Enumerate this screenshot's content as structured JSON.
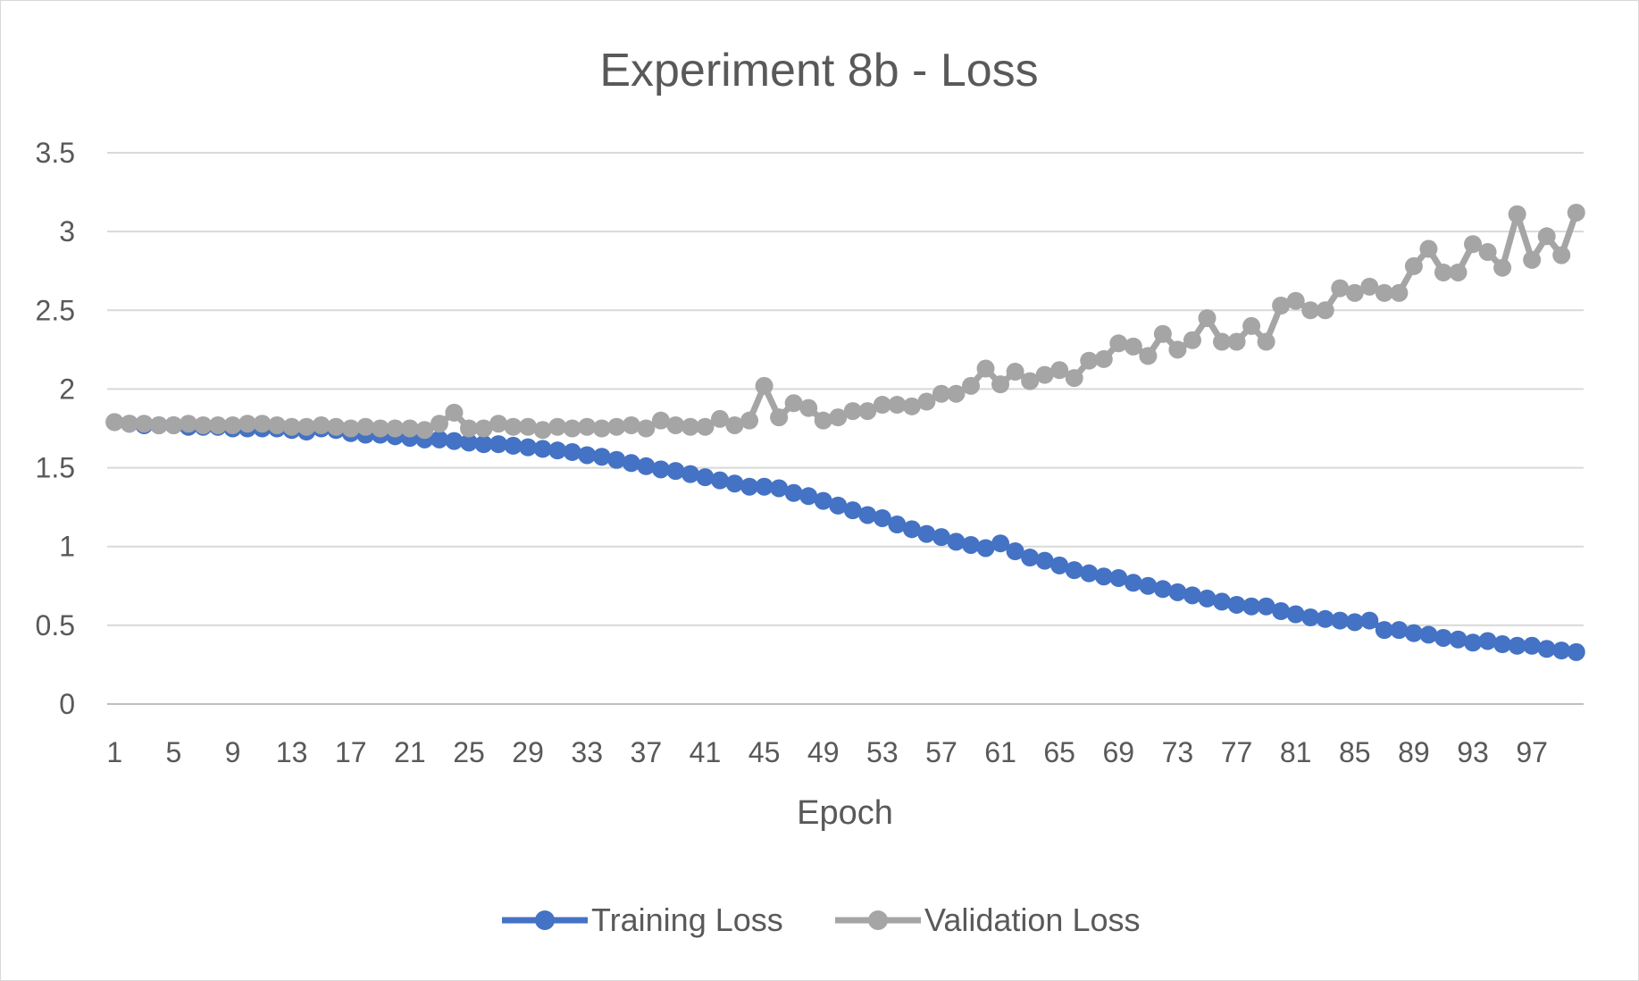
{
  "chart_data": {
    "type": "line",
    "title": "Experiment 8b - Loss",
    "xlabel": "Epoch",
    "ylabel": "",
    "ylim": [
      0,
      3.5
    ],
    "yticks": [
      "0",
      "0.5",
      "1",
      "1.5",
      "2",
      "2.5",
      "3",
      "3.5"
    ],
    "xticks": [
      "1",
      "5",
      "9",
      "13",
      "17",
      "21",
      "25",
      "29",
      "33",
      "37",
      "41",
      "45",
      "49",
      "53",
      "57",
      "61",
      "65",
      "69",
      "73",
      "77",
      "81",
      "85",
      "89",
      "93",
      "97"
    ],
    "grid": true,
    "legend_position": "bottom",
    "x_start": 1,
    "series": [
      {
        "name": "Training Loss",
        "color": "#4472c4",
        "values": [
          1.79,
          1.78,
          1.77,
          1.77,
          1.77,
          1.76,
          1.76,
          1.76,
          1.75,
          1.75,
          1.75,
          1.75,
          1.74,
          1.73,
          1.75,
          1.74,
          1.72,
          1.71,
          1.71,
          1.7,
          1.69,
          1.68,
          1.68,
          1.67,
          1.66,
          1.65,
          1.65,
          1.64,
          1.63,
          1.62,
          1.61,
          1.6,
          1.58,
          1.57,
          1.55,
          1.53,
          1.51,
          1.49,
          1.48,
          1.46,
          1.44,
          1.42,
          1.4,
          1.38,
          1.38,
          1.37,
          1.34,
          1.32,
          1.29,
          1.26,
          1.23,
          1.2,
          1.18,
          1.14,
          1.11,
          1.08,
          1.06,
          1.03,
          1.01,
          0.99,
          1.02,
          0.97,
          0.93,
          0.91,
          0.88,
          0.85,
          0.83,
          0.81,
          0.8,
          0.77,
          0.75,
          0.73,
          0.71,
          0.69,
          0.67,
          0.65,
          0.63,
          0.62,
          0.62,
          0.59,
          0.57,
          0.55,
          0.54,
          0.53,
          0.52,
          0.53,
          0.47,
          0.47,
          0.45,
          0.44,
          0.42,
          0.41,
          0.39,
          0.4,
          0.38,
          0.37,
          0.37,
          0.35,
          0.34,
          0.33
        ]
      },
      {
        "name": "Validation Loss",
        "color": "#a5a5a5",
        "values": [
          1.79,
          1.78,
          1.78,
          1.77,
          1.77,
          1.78,
          1.77,
          1.77,
          1.77,
          1.78,
          1.78,
          1.77,
          1.76,
          1.76,
          1.77,
          1.76,
          1.75,
          1.76,
          1.75,
          1.75,
          1.75,
          1.74,
          1.78,
          1.85,
          1.75,
          1.75,
          1.78,
          1.76,
          1.76,
          1.74,
          1.76,
          1.75,
          1.76,
          1.75,
          1.76,
          1.77,
          1.75,
          1.8,
          1.77,
          1.76,
          1.76,
          1.81,
          1.77,
          1.8,
          2.02,
          1.82,
          1.91,
          1.88,
          1.8,
          1.82,
          1.86,
          1.86,
          1.9,
          1.9,
          1.89,
          1.92,
          1.97,
          1.97,
          2.02,
          2.13,
          2.03,
          2.11,
          2.05,
          2.09,
          2.12,
          2.07,
          2.18,
          2.19,
          2.29,
          2.27,
          2.21,
          2.35,
          2.25,
          2.31,
          2.45,
          2.3,
          2.3,
          2.4,
          2.3,
          2.53,
          2.56,
          2.5,
          2.5,
          2.64,
          2.61,
          2.65,
          2.61,
          2.61,
          2.78,
          2.89,
          2.74,
          2.74,
          2.92,
          2.87,
          2.77,
          3.11,
          2.82,
          2.97,
          2.85,
          3.12
        ]
      }
    ]
  }
}
